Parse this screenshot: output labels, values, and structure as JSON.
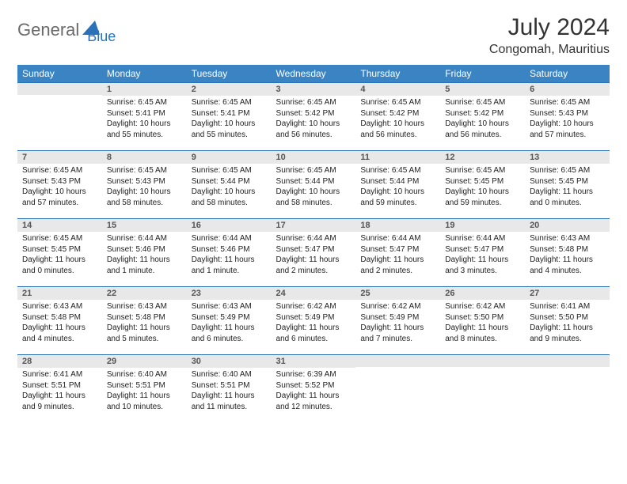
{
  "logo": {
    "general": "General",
    "blue": "Blue"
  },
  "title": "July 2024",
  "location": "Congomah, Mauritius",
  "colors": {
    "header_bg": "#3a84c4",
    "header_text": "#ffffff",
    "daynum_bg": "#e8e8e8",
    "border": "#2a71b8",
    "logo_gray": "#6a6a6a",
    "logo_blue": "#2a71b8"
  },
  "weekdays": [
    "Sunday",
    "Monday",
    "Tuesday",
    "Wednesday",
    "Thursday",
    "Friday",
    "Saturday"
  ],
  "weeks": [
    [
      {
        "empty": true
      },
      {
        "n": "1",
        "sunrise": "Sunrise: 6:45 AM",
        "sunset": "Sunset: 5:41 PM",
        "daylight": "Daylight: 10 hours and 55 minutes."
      },
      {
        "n": "2",
        "sunrise": "Sunrise: 6:45 AM",
        "sunset": "Sunset: 5:41 PM",
        "daylight": "Daylight: 10 hours and 55 minutes."
      },
      {
        "n": "3",
        "sunrise": "Sunrise: 6:45 AM",
        "sunset": "Sunset: 5:42 PM",
        "daylight": "Daylight: 10 hours and 56 minutes."
      },
      {
        "n": "4",
        "sunrise": "Sunrise: 6:45 AM",
        "sunset": "Sunset: 5:42 PM",
        "daylight": "Daylight: 10 hours and 56 minutes."
      },
      {
        "n": "5",
        "sunrise": "Sunrise: 6:45 AM",
        "sunset": "Sunset: 5:42 PM",
        "daylight": "Daylight: 10 hours and 56 minutes."
      },
      {
        "n": "6",
        "sunrise": "Sunrise: 6:45 AM",
        "sunset": "Sunset: 5:43 PM",
        "daylight": "Daylight: 10 hours and 57 minutes."
      }
    ],
    [
      {
        "n": "7",
        "sunrise": "Sunrise: 6:45 AM",
        "sunset": "Sunset: 5:43 PM",
        "daylight": "Daylight: 10 hours and 57 minutes."
      },
      {
        "n": "8",
        "sunrise": "Sunrise: 6:45 AM",
        "sunset": "Sunset: 5:43 PM",
        "daylight": "Daylight: 10 hours and 58 minutes."
      },
      {
        "n": "9",
        "sunrise": "Sunrise: 6:45 AM",
        "sunset": "Sunset: 5:44 PM",
        "daylight": "Daylight: 10 hours and 58 minutes."
      },
      {
        "n": "10",
        "sunrise": "Sunrise: 6:45 AM",
        "sunset": "Sunset: 5:44 PM",
        "daylight": "Daylight: 10 hours and 58 minutes."
      },
      {
        "n": "11",
        "sunrise": "Sunrise: 6:45 AM",
        "sunset": "Sunset: 5:44 PM",
        "daylight": "Daylight: 10 hours and 59 minutes."
      },
      {
        "n": "12",
        "sunrise": "Sunrise: 6:45 AM",
        "sunset": "Sunset: 5:45 PM",
        "daylight": "Daylight: 10 hours and 59 minutes."
      },
      {
        "n": "13",
        "sunrise": "Sunrise: 6:45 AM",
        "sunset": "Sunset: 5:45 PM",
        "daylight": "Daylight: 11 hours and 0 minutes."
      }
    ],
    [
      {
        "n": "14",
        "sunrise": "Sunrise: 6:45 AM",
        "sunset": "Sunset: 5:45 PM",
        "daylight": "Daylight: 11 hours and 0 minutes."
      },
      {
        "n": "15",
        "sunrise": "Sunrise: 6:44 AM",
        "sunset": "Sunset: 5:46 PM",
        "daylight": "Daylight: 11 hours and 1 minute."
      },
      {
        "n": "16",
        "sunrise": "Sunrise: 6:44 AM",
        "sunset": "Sunset: 5:46 PM",
        "daylight": "Daylight: 11 hours and 1 minute."
      },
      {
        "n": "17",
        "sunrise": "Sunrise: 6:44 AM",
        "sunset": "Sunset: 5:47 PM",
        "daylight": "Daylight: 11 hours and 2 minutes."
      },
      {
        "n": "18",
        "sunrise": "Sunrise: 6:44 AM",
        "sunset": "Sunset: 5:47 PM",
        "daylight": "Daylight: 11 hours and 2 minutes."
      },
      {
        "n": "19",
        "sunrise": "Sunrise: 6:44 AM",
        "sunset": "Sunset: 5:47 PM",
        "daylight": "Daylight: 11 hours and 3 minutes."
      },
      {
        "n": "20",
        "sunrise": "Sunrise: 6:43 AM",
        "sunset": "Sunset: 5:48 PM",
        "daylight": "Daylight: 11 hours and 4 minutes."
      }
    ],
    [
      {
        "n": "21",
        "sunrise": "Sunrise: 6:43 AM",
        "sunset": "Sunset: 5:48 PM",
        "daylight": "Daylight: 11 hours and 4 minutes."
      },
      {
        "n": "22",
        "sunrise": "Sunrise: 6:43 AM",
        "sunset": "Sunset: 5:48 PM",
        "daylight": "Daylight: 11 hours and 5 minutes."
      },
      {
        "n": "23",
        "sunrise": "Sunrise: 6:43 AM",
        "sunset": "Sunset: 5:49 PM",
        "daylight": "Daylight: 11 hours and 6 minutes."
      },
      {
        "n": "24",
        "sunrise": "Sunrise: 6:42 AM",
        "sunset": "Sunset: 5:49 PM",
        "daylight": "Daylight: 11 hours and 6 minutes."
      },
      {
        "n": "25",
        "sunrise": "Sunrise: 6:42 AM",
        "sunset": "Sunset: 5:49 PM",
        "daylight": "Daylight: 11 hours and 7 minutes."
      },
      {
        "n": "26",
        "sunrise": "Sunrise: 6:42 AM",
        "sunset": "Sunset: 5:50 PM",
        "daylight": "Daylight: 11 hours and 8 minutes."
      },
      {
        "n": "27",
        "sunrise": "Sunrise: 6:41 AM",
        "sunset": "Sunset: 5:50 PM",
        "daylight": "Daylight: 11 hours and 9 minutes."
      }
    ],
    [
      {
        "n": "28",
        "sunrise": "Sunrise: 6:41 AM",
        "sunset": "Sunset: 5:51 PM",
        "daylight": "Daylight: 11 hours and 9 minutes."
      },
      {
        "n": "29",
        "sunrise": "Sunrise: 6:40 AM",
        "sunset": "Sunset: 5:51 PM",
        "daylight": "Daylight: 11 hours and 10 minutes."
      },
      {
        "n": "30",
        "sunrise": "Sunrise: 6:40 AM",
        "sunset": "Sunset: 5:51 PM",
        "daylight": "Daylight: 11 hours and 11 minutes."
      },
      {
        "n": "31",
        "sunrise": "Sunrise: 6:39 AM",
        "sunset": "Sunset: 5:52 PM",
        "daylight": "Daylight: 11 hours and 12 minutes."
      },
      {
        "empty": true
      },
      {
        "empty": true
      },
      {
        "empty": true
      }
    ]
  ]
}
